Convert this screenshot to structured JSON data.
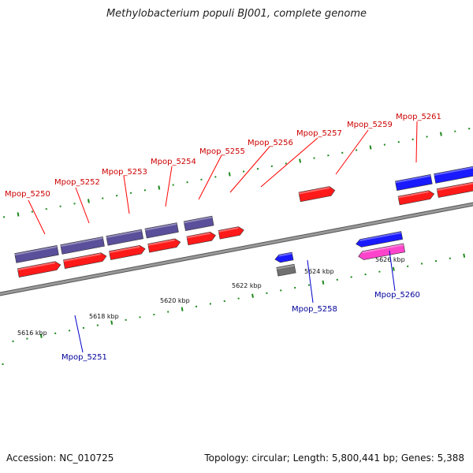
{
  "title": "Methylobacterium populi BJ001, complete genome",
  "footer": {
    "accession": "Accession: NC_010725",
    "summary": "Topology: circular; Length: 5,800,441 bp; Genes: 5,388"
  },
  "colors": {
    "forward_cds": "#ff1a1a",
    "reverse_cds": "#1a1aff",
    "forward_gene": "#5a4f9a",
    "reverse_gene": "#ff44cc",
    "misc_feature": "#707070",
    "backbone": "#999999",
    "tick": "#1e8a1e",
    "label_forward": "#cc0000",
    "label_reverse": "#000099"
  },
  "scale": {
    "ticks": [
      {
        "label": "5616 kbp",
        "pos": 5616
      },
      {
        "label": "5618 kbp",
        "pos": 5618
      },
      {
        "label": "5620 kbp",
        "pos": 5620
      },
      {
        "label": "5622 kbp",
        "pos": 5622
      },
      {
        "label": "5624 kbp",
        "pos": 5624
      },
      {
        "label": "5626 kbp",
        "pos": 5626
      }
    ]
  },
  "labels": {
    "forward": [
      "Mpop_5250",
      "Mpop_5252",
      "Mpop_5253",
      "Mpop_5254",
      "Mpop_5255",
      "Mpop_5256",
      "Mpop_5257",
      "Mpop_5259",
      "Mpop_5261"
    ],
    "reverse": [
      "Mpop_5251",
      "Mpop_5258",
      "Mpop_5260"
    ]
  },
  "features": [
    {
      "track": "fwd_cds",
      "start": 5613.3,
      "end": 5613.6,
      "strand": "+",
      "color": "#ff1a1a"
    },
    {
      "track": "fwd_cds",
      "start": 5613.7,
      "end": 5614.0,
      "strand": "+",
      "color": "#ff1a1a"
    },
    {
      "track": "fwd_cds",
      "start": 5614.1,
      "end": 5614.3,
      "strand": "+",
      "color": "#ff1a1a"
    },
    {
      "track": "fwd_cds",
      "start": 5614.8,
      "end": 5615.0,
      "strand": "+",
      "color": "#ff1a1a"
    },
    {
      "track": "rev_cds",
      "start": 5615.5,
      "end": 5615.75,
      "strand": "-",
      "color": "#1a1aff"
    },
    {
      "track": "fwd_gene",
      "start": 5616.7,
      "end": 5617.9,
      "strand": "+",
      "color": "#5a4f9a"
    },
    {
      "track": "fwd_cds",
      "start": 5616.7,
      "end": 5617.9,
      "strand": "+",
      "color": "#ff1a1a"
    },
    {
      "track": "fwd_gene",
      "start": 5618.0,
      "end": 5619.2,
      "strand": "+",
      "color": "#5a4f9a"
    },
    {
      "track": "fwd_cds",
      "start": 5618.0,
      "end": 5619.2,
      "strand": "+",
      "color": "#ff1a1a"
    },
    {
      "track": "fwd_gene",
      "start": 5619.3,
      "end": 5620.3,
      "strand": "+",
      "color": "#5a4f9a"
    },
    {
      "track": "fwd_cds",
      "start": 5619.3,
      "end": 5620.3,
      "strand": "+",
      "color": "#ff1a1a"
    },
    {
      "track": "fwd_gene",
      "start": 5620.4,
      "end": 5621.3,
      "strand": "+",
      "color": "#5a4f9a"
    },
    {
      "track": "fwd_cds",
      "start": 5620.4,
      "end": 5621.3,
      "strand": "+",
      "color": "#ff1a1a"
    },
    {
      "track": "fwd_gene",
      "start": 5621.5,
      "end": 5622.3,
      "strand": "+",
      "color": "#5a4f9a"
    },
    {
      "track": "fwd_cds",
      "start": 5621.5,
      "end": 5622.3,
      "strand": "+",
      "color": "#ff1a1a"
    },
    {
      "track": "fwd_cds",
      "start": 5622.4,
      "end": 5623.1,
      "strand": "+",
      "color": "#ff1a1a"
    },
    {
      "track": "rev_cds",
      "start": 5623.8,
      "end": 5624.3,
      "strand": "-",
      "color": "#1a1aff"
    },
    {
      "track": "rev_gene",
      "start": 5623.8,
      "end": 5624.3,
      "strand": "-",
      "color": "#707070"
    },
    {
      "track": "fwd_far",
      "start": 5624.8,
      "end": 5625.8,
      "strand": "+",
      "color": "#ff1a1a"
    },
    {
      "track": "rev_cds",
      "start": 5626.1,
      "end": 5627.4,
      "strand": "-",
      "color": "#1a1aff"
    },
    {
      "track": "rev_gene",
      "start": 5626.1,
      "end": 5627.4,
      "strand": "-",
      "color": "#ff44cc"
    },
    {
      "track": "fwd_gene",
      "start": 5627.5,
      "end": 5628.5,
      "strand": "+",
      "color": "#1a1aff"
    },
    {
      "track": "fwd_cds",
      "start": 5627.5,
      "end": 5628.5,
      "strand": "+",
      "color": "#ff1a1a"
    },
    {
      "track": "fwd_gene",
      "start": 5628.6,
      "end": 5630.0,
      "strand": "+",
      "color": "#1a1aff"
    },
    {
      "track": "fwd_cds",
      "start": 5628.6,
      "end": 5630.0,
      "strand": "+",
      "color": "#ff1a1a"
    }
  ]
}
